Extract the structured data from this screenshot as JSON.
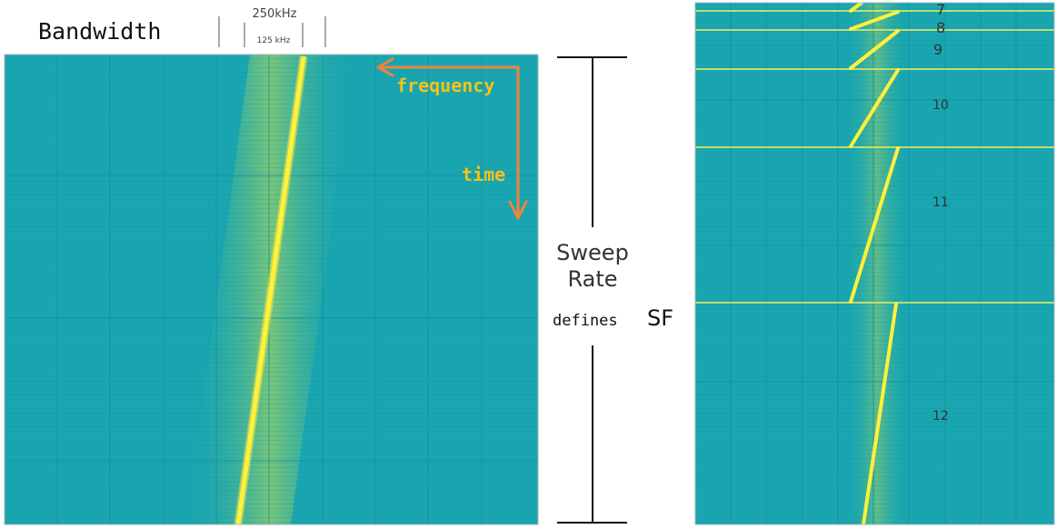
{
  "left_panel": {
    "bandwidth_label": "Bandwidth",
    "bw_250": "250kHz",
    "bw_125": "125 kHz",
    "frequency_label": "frequency",
    "time_label": "time"
  },
  "middle": {
    "sweep": "Sweep",
    "rate": "Rate",
    "defines": "defines",
    "sf": "SF"
  },
  "right_panel": {
    "sf_labels": [
      "7",
      "8",
      "9",
      "10",
      "11",
      "12"
    ]
  },
  "colors": {
    "background": "#19a6b1",
    "chirp": "#fff13a",
    "glow": "#b8d85a",
    "annotation_arrow": "#f2833a",
    "annotation_text": "#f5c21a"
  }
}
